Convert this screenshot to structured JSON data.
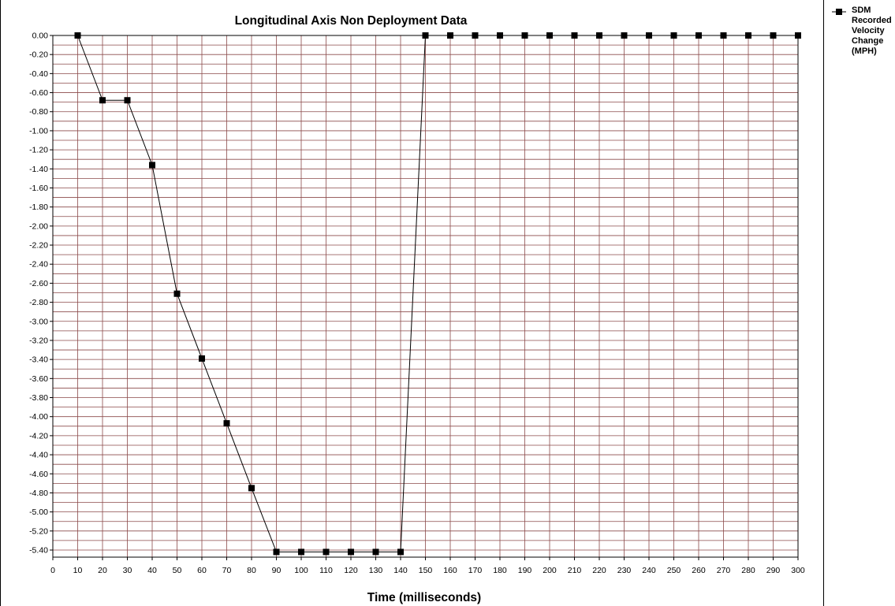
{
  "chart_data": {
    "type": "line",
    "title": "Longitudinal Axis Non Deployment Data",
    "xlabel": "Time (milliseconds)",
    "ylabel": "",
    "xlim": [
      0,
      300
    ],
    "ylim": [
      -5.5,
      0
    ],
    "x_ticks": [
      0,
      10,
      20,
      30,
      40,
      50,
      60,
      70,
      80,
      90,
      100,
      110,
      120,
      130,
      140,
      150,
      160,
      170,
      180,
      190,
      200,
      210,
      220,
      230,
      240,
      250,
      260,
      270,
      280,
      290,
      300
    ],
    "y_ticks": [
      "0.00",
      "-0.20",
      "-0.40",
      "-0.60",
      "-0.80",
      "-1.00",
      "-1.20",
      "-1.40",
      "-1.60",
      "-1.80",
      "-2.00",
      "-2.20",
      "-2.40",
      "-2.60",
      "-2.80",
      "-3.00",
      "-3.20",
      "-3.40",
      "-3.60",
      "-3.80",
      "-4.00",
      "-4.20",
      "-4.40",
      "-4.60",
      "-4.80",
      "-5.00",
      "-5.20",
      "-5.40"
    ],
    "grid": true,
    "legend_position": "right",
    "colors": {
      "grid": "#8b4a4a",
      "line": "#000000",
      "frame": "#000000"
    },
    "series": [
      {
        "name": "SDM Recorded Velocity Change (MPH)",
        "x": [
          10,
          20,
          30,
          40,
          50,
          60,
          70,
          80,
          90,
          100,
          110,
          120,
          130,
          140,
          150,
          160,
          170,
          180,
          190,
          200,
          210,
          220,
          230,
          240,
          250,
          260,
          270,
          280,
          290,
          300
        ],
        "y": [
          0,
          -0.68,
          -0.68,
          -1.36,
          -2.71,
          -3.39,
          -4.07,
          -4.75,
          -5.42,
          -5.42,
          -5.42,
          -5.42,
          -5.42,
          -5.42,
          0,
          0,
          0,
          0,
          0,
          0,
          0,
          0,
          0,
          0,
          0,
          0,
          0,
          0,
          0,
          0
        ]
      }
    ]
  },
  "legend": {
    "label": "SDM Recorded Velocity Change (MPH)",
    "marker_icon": "square-marker-icon"
  }
}
